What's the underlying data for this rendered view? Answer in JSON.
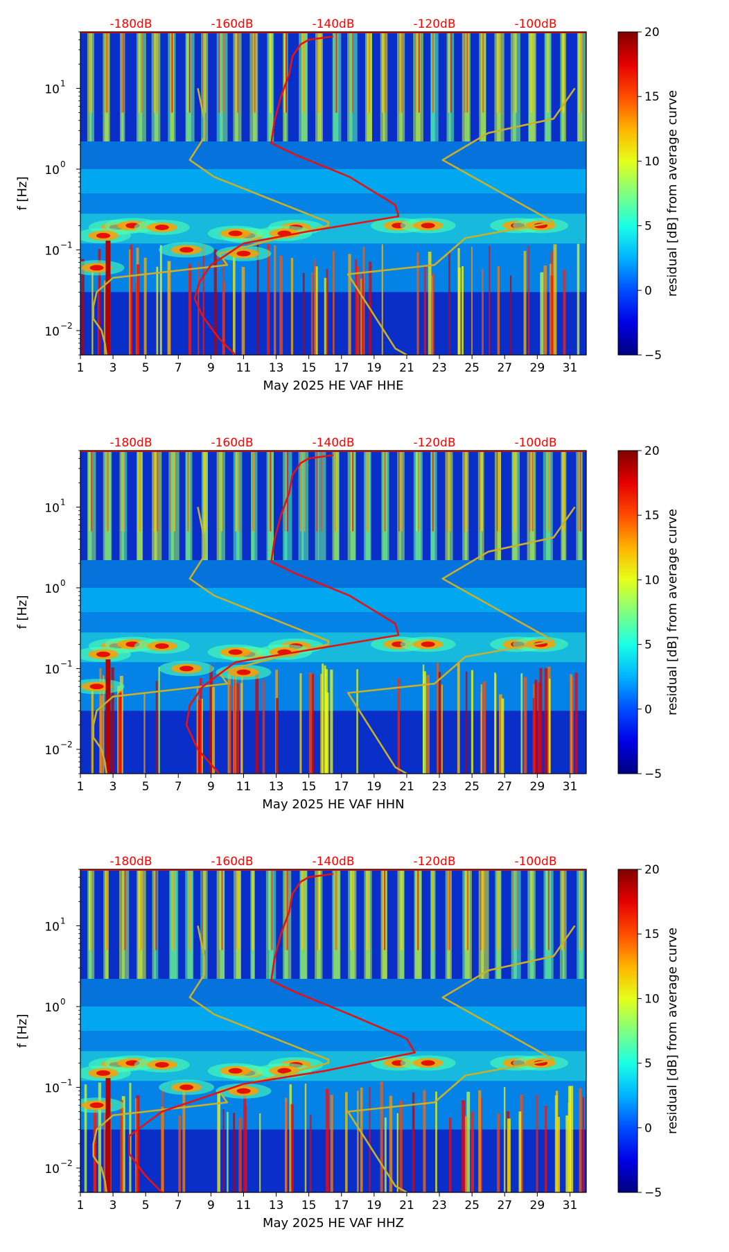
{
  "charts": [
    {
      "type": "heatmap",
      "xlabel": "May 2025 HE VAF  HHE",
      "ylabel": "f [Hz]",
      "colorbar_label": "residual [dB] from average curve",
      "colorbar_ticks": [
        "20",
        "15",
        "10",
        "5",
        "0",
        "−5"
      ],
      "colorbar_range": [
        -5,
        20
      ],
      "x_ticks": [
        "1",
        "3",
        "5",
        "7",
        "9",
        "11",
        "13",
        "15",
        "17",
        "19",
        "21",
        "23",
        "25",
        "27",
        "29",
        "31"
      ],
      "xlim": [
        1,
        32
      ],
      "y_ticks": [
        {
          "label": "10",
          "exp": "1",
          "value": 10
        },
        {
          "label": "10",
          "exp": "0",
          "value": 1
        },
        {
          "label": "10",
          "exp": "−1",
          "value": 0.1
        },
        {
          "label": "10",
          "exp": "−2",
          "value": 0.01
        }
      ],
      "ylim": [
        0.005,
        50
      ],
      "db_axis_labels": [
        "-180dB",
        "-160dB",
        "-140dB",
        "-120dB",
        "-100dB"
      ],
      "db_axis_positions_day": [
        4.1,
        10.3,
        16.5,
        22.7,
        28.9
      ],
      "yellow_noise_model": [
        [
          8.2,
          10
        ],
        [
          8.6,
          4
        ],
        [
          8.6,
          2.5
        ],
        [
          7.7,
          1.3
        ],
        [
          9.2,
          0.8
        ],
        [
          16.2,
          0.22
        ],
        [
          16.2,
          0.2
        ],
        [
          9.5,
          0.09
        ],
        [
          10.0,
          0.065
        ],
        [
          3.0,
          0.045
        ],
        [
          2.0,
          0.03
        ],
        [
          1.8,
          0.02
        ],
        [
          1.8,
          0.014
        ],
        [
          2.3,
          0.01
        ],
        [
          2.5,
          0.007
        ],
        [
          2.6,
          0.005
        ]
      ],
      "yellow_noise_model_2": [
        [
          31.3,
          10
        ],
        [
          30,
          4.2
        ],
        [
          26,
          2.8
        ],
        [
          23.2,
          1.3
        ],
        [
          30,
          0.22
        ],
        [
          24.6,
          0.14
        ],
        [
          22.7,
          0.065
        ],
        [
          17.4,
          0.05
        ],
        [
          20.3,
          0.006
        ],
        [
          21,
          0.005
        ]
      ],
      "red_curve": [
        [
          16.5,
          44
        ],
        [
          15,
          40
        ],
        [
          14.5,
          35
        ],
        [
          14,
          25
        ],
        [
          13.8,
          15
        ],
        [
          13.3,
          8
        ],
        [
          12.9,
          4
        ],
        [
          12.7,
          2.1
        ],
        [
          14.2,
          1.5
        ],
        [
          17.5,
          0.8
        ],
        [
          20.3,
          0.36
        ],
        [
          20.5,
          0.26
        ],
        [
          15,
          0.17
        ],
        [
          11,
          0.12
        ],
        [
          9,
          0.065
        ],
        [
          8.3,
          0.04
        ],
        [
          8.0,
          0.025
        ],
        [
          8.5,
          0.015
        ],
        [
          9.5,
          0.008
        ],
        [
          10.5,
          0.005
        ]
      ],
      "series": []
    },
    {
      "type": "heatmap",
      "xlabel": "May 2025 HE VAF  HHN",
      "ylabel": "f [Hz]",
      "colorbar_label": "residual [dB] from average curve",
      "colorbar_ticks": [
        "20",
        "15",
        "10",
        "5",
        "0",
        "−5"
      ],
      "colorbar_range": [
        -5,
        20
      ],
      "x_ticks": [
        "1",
        "3",
        "5",
        "7",
        "9",
        "11",
        "13",
        "15",
        "17",
        "19",
        "21",
        "23",
        "25",
        "27",
        "29",
        "31"
      ],
      "xlim": [
        1,
        32
      ],
      "y_ticks": [
        {
          "label": "10",
          "exp": "1",
          "value": 10
        },
        {
          "label": "10",
          "exp": "0",
          "value": 1
        },
        {
          "label": "10",
          "exp": "−1",
          "value": 0.1
        },
        {
          "label": "10",
          "exp": "−2",
          "value": 0.01
        }
      ],
      "ylim": [
        0.005,
        50
      ],
      "db_axis_labels": [
        "-180dB",
        "-160dB",
        "-140dB",
        "-120dB",
        "-100dB"
      ],
      "db_axis_positions_day": [
        4.1,
        10.3,
        16.5,
        22.7,
        28.9
      ],
      "yellow_noise_model": [
        [
          8.2,
          10
        ],
        [
          8.6,
          4
        ],
        [
          8.6,
          2.5
        ],
        [
          7.7,
          1.3
        ],
        [
          9.2,
          0.8
        ],
        [
          16.2,
          0.22
        ],
        [
          16.2,
          0.2
        ],
        [
          9.5,
          0.09
        ],
        [
          10.0,
          0.065
        ],
        [
          3.0,
          0.045
        ],
        [
          2.0,
          0.03
        ],
        [
          1.8,
          0.02
        ],
        [
          1.8,
          0.014
        ],
        [
          2.3,
          0.01
        ],
        [
          2.5,
          0.007
        ],
        [
          2.6,
          0.005
        ]
      ],
      "yellow_noise_model_2": [
        [
          31.3,
          10
        ],
        [
          30,
          4.2
        ],
        [
          26,
          2.8
        ],
        [
          23.2,
          1.3
        ],
        [
          30,
          0.22
        ],
        [
          24.6,
          0.14
        ],
        [
          22.7,
          0.065
        ],
        [
          17.4,
          0.05
        ],
        [
          20.3,
          0.006
        ],
        [
          21,
          0.005
        ]
      ],
      "red_curve": [
        [
          16.5,
          44
        ],
        [
          15,
          40
        ],
        [
          14.5,
          35
        ],
        [
          14,
          25
        ],
        [
          13.8,
          15
        ],
        [
          13.3,
          8
        ],
        [
          12.9,
          4
        ],
        [
          12.7,
          2.1
        ],
        [
          14.2,
          1.5
        ],
        [
          17.5,
          0.8
        ],
        [
          20.3,
          0.36
        ],
        [
          20.5,
          0.26
        ],
        [
          15,
          0.17
        ],
        [
          10.5,
          0.12
        ],
        [
          8.5,
          0.06
        ],
        [
          7.7,
          0.035
        ],
        [
          7.5,
          0.02
        ],
        [
          8.2,
          0.01
        ],
        [
          9.5,
          0.005
        ]
      ],
      "series": []
    },
    {
      "type": "heatmap",
      "xlabel": "May 2025 HE VAF  HHZ",
      "ylabel": "f [Hz]",
      "colorbar_label": "residual [dB] from average curve",
      "colorbar_ticks": [
        "20",
        "15",
        "10",
        "5",
        "0",
        "−5"
      ],
      "colorbar_range": [
        -5,
        20
      ],
      "x_ticks": [
        "1",
        "3",
        "5",
        "7",
        "9",
        "11",
        "13",
        "15",
        "17",
        "19",
        "21",
        "23",
        "25",
        "27",
        "29",
        "31"
      ],
      "xlim": [
        1,
        32
      ],
      "y_ticks": [
        {
          "label": "10",
          "exp": "1",
          "value": 10
        },
        {
          "label": "10",
          "exp": "0",
          "value": 1
        },
        {
          "label": "10",
          "exp": "−1",
          "value": 0.1
        },
        {
          "label": "10",
          "exp": "−2",
          "value": 0.01
        }
      ],
      "ylim": [
        0.005,
        50
      ],
      "db_axis_labels": [
        "-180dB",
        "-160dB",
        "-140dB",
        "-120dB",
        "-100dB"
      ],
      "db_axis_positions_day": [
        4.1,
        10.3,
        16.5,
        22.7,
        28.9
      ],
      "yellow_noise_model": [
        [
          8.2,
          10
        ],
        [
          8.6,
          4
        ],
        [
          8.6,
          2.5
        ],
        [
          7.7,
          1.3
        ],
        [
          9.2,
          0.8
        ],
        [
          16.2,
          0.22
        ],
        [
          16.2,
          0.2
        ],
        [
          9.5,
          0.09
        ],
        [
          10.0,
          0.065
        ],
        [
          3.0,
          0.045
        ],
        [
          2.0,
          0.03
        ],
        [
          1.8,
          0.02
        ],
        [
          1.8,
          0.014
        ],
        [
          2.3,
          0.01
        ],
        [
          2.5,
          0.007
        ],
        [
          2.6,
          0.005
        ]
      ],
      "yellow_noise_model_2": [
        [
          31.3,
          10
        ],
        [
          30,
          4.2
        ],
        [
          26,
          2.8
        ],
        [
          23.2,
          1.3
        ],
        [
          30,
          0.22
        ],
        [
          24.6,
          0.14
        ],
        [
          22.7,
          0.065
        ],
        [
          17.4,
          0.05
        ],
        [
          20.3,
          0.006
        ],
        [
          21,
          0.005
        ]
      ],
      "red_curve": [
        [
          16.5,
          44
        ],
        [
          15,
          40
        ],
        [
          14.5,
          35
        ],
        [
          14,
          25
        ],
        [
          13.8,
          15
        ],
        [
          13.3,
          8
        ],
        [
          12.9,
          4
        ],
        [
          12.7,
          2.1
        ],
        [
          14.2,
          1.5
        ],
        [
          17.5,
          0.8
        ],
        [
          21,
          0.4
        ],
        [
          21.5,
          0.27
        ],
        [
          16,
          0.16
        ],
        [
          11,
          0.11
        ],
        [
          6,
          0.05
        ],
        [
          4,
          0.025
        ],
        [
          4,
          0.015
        ],
        [
          5,
          0.008
        ],
        [
          6,
          0.005
        ]
      ],
      "series": []
    }
  ]
}
